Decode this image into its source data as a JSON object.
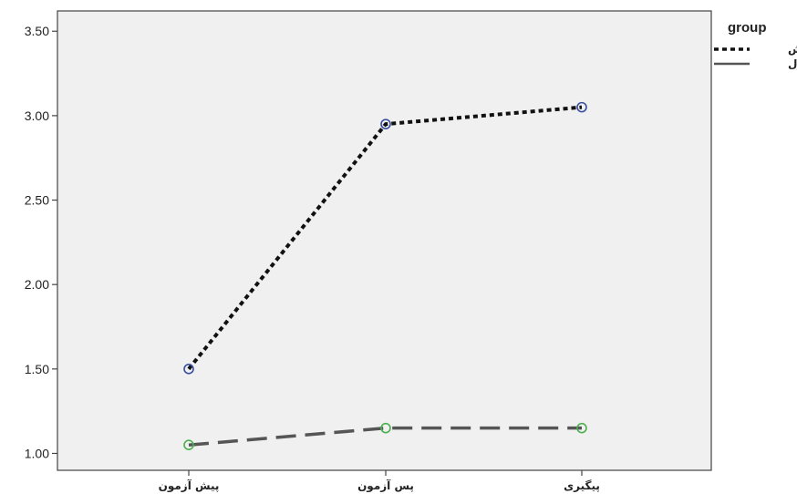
{
  "chart_data": {
    "type": "line",
    "title": "",
    "xlabel": "",
    "ylabel": "",
    "categories": [
      "پیش آزمون",
      "پس آزمون",
      "پیگیری"
    ],
    "ylim": [
      0.9,
      3.62
    ],
    "yticks": [
      "1.00",
      "1.50",
      "2.00",
      "2.50",
      "3.00",
      "3.50"
    ],
    "grid": false,
    "legend": {
      "title": "group",
      "placement": "top-right-outside"
    },
    "series": [
      {
        "name": "آزمایش",
        "values": [
          1.5,
          2.95,
          3.05
        ],
        "line_color": "#111111",
        "marker_color": "#3b4fa0",
        "dash": "dotted"
      },
      {
        "name": "کنترل",
        "values": [
          1.05,
          1.15,
          1.15
        ],
        "line_color": "#555555",
        "marker_color": "#4caf50",
        "dash": "dashed"
      }
    ],
    "colors": {
      "plot_background": "#f0f0f0",
      "axis": "#444444"
    }
  }
}
